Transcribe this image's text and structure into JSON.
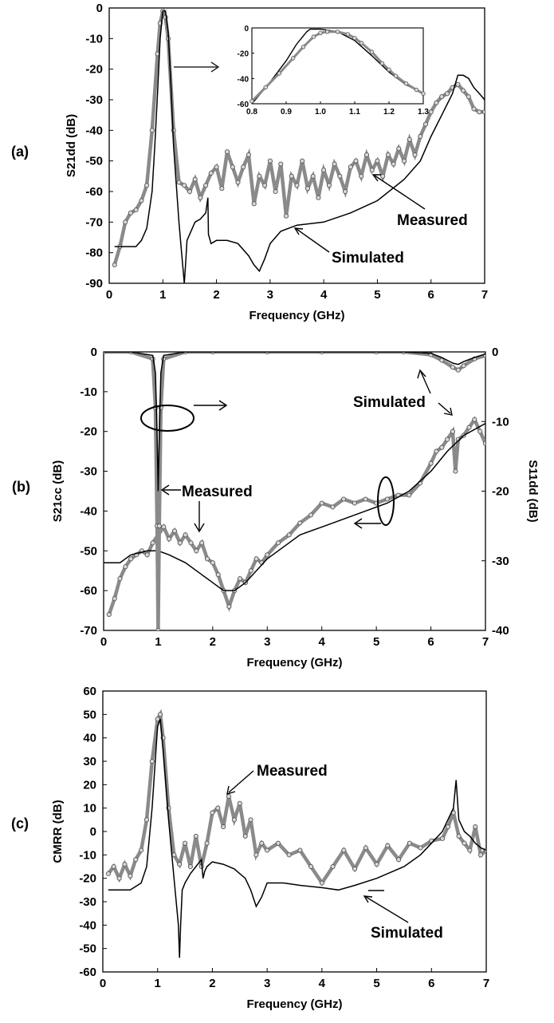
{
  "chart_data": [
    {
      "type": "line",
      "panel_label": "(a)",
      "xlabel": "Frequency (GHz)",
      "ylabel": "S21dd (dB)",
      "xlim": [
        0,
        7
      ],
      "ylim": [
        -90,
        0
      ],
      "xticks": [
        "0",
        "1",
        "2",
        "3",
        "4",
        "5",
        "6",
        "7"
      ],
      "yticks": [
        "0",
        "-10",
        "-20",
        "-30",
        "-40",
        "-50",
        "-60",
        "-70",
        "-80",
        "-90"
      ],
      "annotations": {
        "measured": "Measured",
        "simulated": "Simulated"
      },
      "series": [
        {
          "name": "Measured",
          "style": "circle-markers",
          "x": [
            0.1,
            0.2,
            0.3,
            0.4,
            0.5,
            0.6,
            0.7,
            0.8,
            0.9,
            0.95,
            1.0,
            1.05,
            1.1,
            1.2,
            1.3,
            1.4,
            1.5,
            1.6,
            1.7,
            1.8,
            1.9,
            2.0,
            2.1,
            2.2,
            2.3,
            2.4,
            2.5,
            2.6,
            2.7,
            2.8,
            2.9,
            3.0,
            3.1,
            3.2,
            3.3,
            3.4,
            3.5,
            3.6,
            3.7,
            3.8,
            3.9,
            4.0,
            4.1,
            4.2,
            4.3,
            4.4,
            4.5,
            4.6,
            4.7,
            4.8,
            4.9,
            5.0,
            5.1,
            5.2,
            5.3,
            5.4,
            5.5,
            5.6,
            5.7,
            5.8,
            5.9,
            6.0,
            6.1,
            6.2,
            6.3,
            6.4,
            6.5,
            6.6,
            6.7,
            6.8,
            6.9,
            7.0
          ],
          "y": [
            -84,
            -78,
            -70,
            -67,
            -66,
            -63,
            -58,
            -40,
            -15,
            -5,
            -1,
            -3,
            -10,
            -40,
            -57,
            -58,
            -60,
            -56,
            -62,
            -58,
            -54,
            -52,
            -59,
            -47,
            -52,
            -57,
            -52,
            -48,
            -64,
            -55,
            -58,
            -50,
            -60,
            -51,
            -68,
            -55,
            -58,
            -50,
            -59,
            -55,
            -62,
            -53,
            -58,
            -51,
            -55,
            -60,
            -52,
            -50,
            -55,
            -48,
            -53,
            -50,
            -55,
            -48,
            -51,
            -46,
            -50,
            -43,
            -48,
            -42,
            -38,
            -34,
            -31,
            -29,
            -28,
            -26,
            -25,
            -27,
            -29,
            -33,
            -34,
            -34
          ]
        },
        {
          "name": "Simulated",
          "style": "solid-line",
          "x": [
            0.1,
            0.2,
            0.3,
            0.4,
            0.5,
            0.6,
            0.7,
            0.8,
            0.85,
            0.9,
            0.95,
            1.0,
            1.05,
            1.1,
            1.15,
            1.2,
            1.3,
            1.35,
            1.4,
            1.42,
            1.45,
            1.5,
            1.6,
            1.7,
            1.8,
            1.84,
            1.85,
            1.9,
            2.0,
            2.2,
            2.4,
            2.6,
            2.7,
            2.8,
            2.9,
            3.0,
            3.2,
            3.5,
            4.0,
            4.5,
            5.0,
            5.5,
            5.8,
            6.0,
            6.2,
            6.4,
            6.5,
            6.6,
            6.7,
            6.8,
            6.9,
            7.0
          ],
          "y": [
            -78,
            -78,
            -78,
            -78,
            -78,
            -76,
            -72,
            -60,
            -45,
            -28,
            -10,
            -1,
            -1,
            -8,
            -25,
            -45,
            -70,
            -80,
            -90,
            -85,
            -76,
            -74,
            -70,
            -69,
            -67,
            -62,
            -74,
            -77,
            -76,
            -76,
            -77,
            -81,
            -84,
            -86,
            -82,
            -77,
            -73,
            -71,
            -70,
            -67,
            -63,
            -56,
            -50,
            -42,
            -35,
            -28,
            -22,
            -22,
            -23,
            -26,
            -28,
            -30
          ]
        }
      ],
      "inset": {
        "xlim": [
          0.8,
          1.3
        ],
        "ylim": [
          -60,
          0
        ],
        "xticks": [
          "0.8",
          "0.9",
          "1.0",
          "1.1",
          "1.2",
          "1.3"
        ],
        "yticks": [
          "0",
          "-20",
          "-40",
          "-60"
        ],
        "series": [
          {
            "name": "Simulated",
            "x": [
              0.8,
              0.85,
              0.9,
              0.93,
              0.96,
              0.97,
              1.0,
              1.05,
              1.1,
              1.15,
              1.2,
              1.25,
              1.3
            ],
            "y": [
              -60,
              -44,
              -26,
              -13,
              -3,
              -1,
              -1,
              -3,
              -10,
              -22,
              -35,
              -45,
              -52
            ]
          },
          {
            "name": "Measured",
            "x": [
              0.8,
              0.84,
              0.88,
              0.92,
              0.95,
              0.98,
              1.0,
              1.02,
              1.05,
              1.08,
              1.1,
              1.12,
              1.15,
              1.18,
              1.2,
              1.22,
              1.25,
              1.28,
              1.3
            ],
            "y": [
              -58,
              -47,
              -36,
              -24,
              -15,
              -7,
              -4,
              -3,
              -3,
              -5,
              -8,
              -12,
              -19,
              -28,
              -33,
              -38,
              -44,
              -49,
              -52
            ]
          }
        ]
      }
    },
    {
      "type": "line",
      "panel_label": "(b)",
      "xlabel": "Frequency (GHz)",
      "ylabel": "S21cc (dB)",
      "ylabel_right": "S11dd (dB)",
      "xlim": [
        0,
        7
      ],
      "ylim": [
        -70,
        0
      ],
      "ylim_right": [
        -40,
        0
      ],
      "xticks": [
        "0",
        "1",
        "2",
        "3",
        "4",
        "5",
        "6",
        "7"
      ],
      "yticks": [
        "0",
        "-10",
        "-20",
        "-30",
        "-40",
        "-50",
        "-60",
        "-70"
      ],
      "yticks_right": [
        "0",
        "-10",
        "-20",
        "-30",
        "-40"
      ],
      "annotations": {
        "measured": "Measured",
        "simulated": "Simulated"
      },
      "series": [
        {
          "name": "Measured S21cc",
          "axis": "left",
          "style": "circle-markers",
          "x": [
            0.1,
            0.2,
            0.3,
            0.4,
            0.5,
            0.6,
            0.7,
            0.8,
            0.9,
            1.0,
            1.1,
            1.2,
            1.3,
            1.4,
            1.5,
            1.6,
            1.7,
            1.8,
            1.9,
            2.0,
            2.1,
            2.2,
            2.3,
            2.4,
            2.5,
            2.6,
            2.7,
            2.8,
            2.9,
            3.0,
            3.2,
            3.4,
            3.6,
            3.8,
            4.0,
            4.2,
            4.4,
            4.6,
            4.8,
            5.0,
            5.2,
            5.4,
            5.6,
            5.8,
            6.0,
            6.1,
            6.2,
            6.3,
            6.4,
            6.45,
            6.5,
            6.6,
            6.7,
            6.8,
            6.9,
            7.0
          ],
          "y": [
            -66,
            -62,
            -57,
            -54,
            -52,
            -51,
            -50,
            -51,
            -48,
            -46,
            -44,
            -47,
            -45,
            -48,
            -46,
            -48,
            -50,
            -48,
            -52,
            -53,
            -56,
            -60,
            -64,
            -60,
            -57,
            -58,
            -55,
            -52,
            -53,
            -51,
            -48,
            -46,
            -43,
            -41,
            -38,
            -39,
            -37,
            -38,
            -37,
            -38,
            -37,
            -36,
            -36,
            -33,
            -28,
            -25,
            -24,
            -22,
            -20,
            -30,
            -22,
            -21,
            -19,
            -17,
            -20,
            -23
          ]
        },
        {
          "name": "Simulated S21cc",
          "axis": "left",
          "style": "solid-line",
          "x": [
            0.0,
            0.3,
            0.5,
            0.8,
            1.0,
            1.2,
            1.5,
            1.8,
            2.0,
            2.2,
            2.4,
            2.6,
            2.8,
            3.0,
            3.3,
            3.6,
            4.0,
            4.4,
            4.8,
            5.2,
            5.6,
            6.0,
            6.3,
            6.6,
            7.0
          ],
          "y": [
            -53,
            -53,
            -51,
            -50,
            -50,
            -51,
            -53,
            -56,
            -58,
            -60,
            -60,
            -58,
            -55,
            -52,
            -49,
            -46,
            -44,
            -42,
            -40,
            -38,
            -35,
            -30,
            -25,
            -21,
            -18
          ]
        },
        {
          "name": "Measured S11dd",
          "axis": "right",
          "style": "circle-markers",
          "x": [
            0.0,
            0.5,
            0.9,
            0.95,
            0.98,
            1.0,
            1.02,
            1.05,
            1.1,
            1.5,
            2.0,
            3.0,
            4.0,
            5.0,
            5.5,
            6.0,
            6.2,
            6.4,
            6.5,
            6.6,
            6.8,
            7.0
          ],
          "y": [
            0,
            0,
            -1,
            -8,
            -25,
            -40,
            -25,
            -8,
            -1,
            0,
            0,
            0,
            0,
            0,
            0,
            -0.4,
            -1.2,
            -2.2,
            -2.6,
            -2.0,
            -1.0,
            -0.5
          ]
        },
        {
          "name": "Simulated S11dd",
          "axis": "right",
          "style": "solid-line",
          "x": [
            0.0,
            0.5,
            0.9,
            0.95,
            0.98,
            1.0,
            1.02,
            1.05,
            1.1,
            1.5,
            2.0,
            3.0,
            4.0,
            5.0,
            5.5,
            6.0,
            6.2,
            6.4,
            6.5,
            6.6,
            6.8,
            7.0
          ],
          "y": [
            0,
            0,
            -0.5,
            -3,
            -12,
            -20,
            -12,
            -3,
            -0.5,
            0,
            0,
            0,
            0,
            0,
            0,
            -0.2,
            -0.8,
            -1.6,
            -1.8,
            -1.4,
            -0.8,
            -0.3
          ]
        }
      ]
    },
    {
      "type": "line",
      "panel_label": "(c)",
      "xlabel": "Frequency (GHz)",
      "ylabel": "CMRR (dB)",
      "xlim": [
        0,
        7
      ],
      "ylim": [
        -60,
        60
      ],
      "xticks": [
        "0",
        "1",
        "2",
        "3",
        "4",
        "5",
        "6",
        "7"
      ],
      "yticks": [
        "60",
        "50",
        "40",
        "30",
        "20",
        "10",
        "0",
        "-10",
        "-20",
        "-30",
        "-40",
        "-50",
        "-60"
      ],
      "annotations": {
        "measured": "Measured",
        "simulated": "Simulated"
      },
      "series": [
        {
          "name": "Measured",
          "style": "circle-markers",
          "x": [
            0.1,
            0.2,
            0.3,
            0.4,
            0.5,
            0.6,
            0.7,
            0.8,
            0.9,
            1.0,
            1.05,
            1.1,
            1.2,
            1.3,
            1.4,
            1.5,
            1.6,
            1.7,
            1.8,
            1.9,
            2.0,
            2.1,
            2.2,
            2.3,
            2.4,
            2.5,
            2.6,
            2.7,
            2.8,
            2.9,
            3.0,
            3.2,
            3.4,
            3.6,
            3.8,
            4.0,
            4.2,
            4.4,
            4.6,
            4.8,
            5.0,
            5.2,
            5.4,
            5.6,
            5.8,
            6.0,
            6.2,
            6.3,
            6.4,
            6.5,
            6.6,
            6.7,
            6.8,
            6.9,
            7.0
          ],
          "y": [
            -18,
            -15,
            -20,
            -14,
            -19,
            -12,
            -8,
            5,
            30,
            48,
            50,
            40,
            10,
            -10,
            -14,
            -5,
            -15,
            -2,
            -15,
            -5,
            8,
            10,
            2,
            15,
            5,
            12,
            -2,
            5,
            -10,
            -5,
            -8,
            -5,
            -10,
            -8,
            -15,
            -22,
            -15,
            -8,
            -16,
            -7,
            -14,
            -6,
            -12,
            -5,
            -7,
            -4,
            -3,
            2,
            8,
            -2,
            -5,
            -8,
            2,
            -10,
            -8
          ]
        },
        {
          "name": "Simulated",
          "style": "solid-line",
          "x": [
            0.1,
            0.5,
            0.7,
            0.8,
            0.9,
            1.0,
            1.05,
            1.1,
            1.2,
            1.3,
            1.38,
            1.4,
            1.42,
            1.45,
            1.5,
            1.6,
            1.7,
            1.8,
            1.83,
            1.86,
            1.9,
            2.0,
            2.2,
            2.4,
            2.6,
            2.7,
            2.8,
            2.9,
            3.0,
            3.3,
            3.6,
            4.0,
            4.3,
            4.6,
            5.0,
            5.5,
            5.8,
            6.0,
            6.2,
            6.3,
            6.4,
            6.45,
            6.5,
            6.6,
            6.7,
            6.8,
            6.9,
            7.0
          ],
          "y": [
            -25,
            -25,
            -22,
            -15,
            10,
            45,
            48,
            35,
            5,
            -20,
            -40,
            -54,
            -40,
            -25,
            -22,
            -18,
            -15,
            -12,
            -20,
            -17,
            -15,
            -13,
            -14,
            -16,
            -20,
            -25,
            -32,
            -28,
            -22,
            -22,
            -23,
            -24,
            -25,
            -23,
            -20,
            -15,
            -10,
            -5,
            0,
            5,
            10,
            22,
            5,
            0,
            -2,
            -5,
            -7,
            -8
          ]
        }
      ]
    }
  ]
}
